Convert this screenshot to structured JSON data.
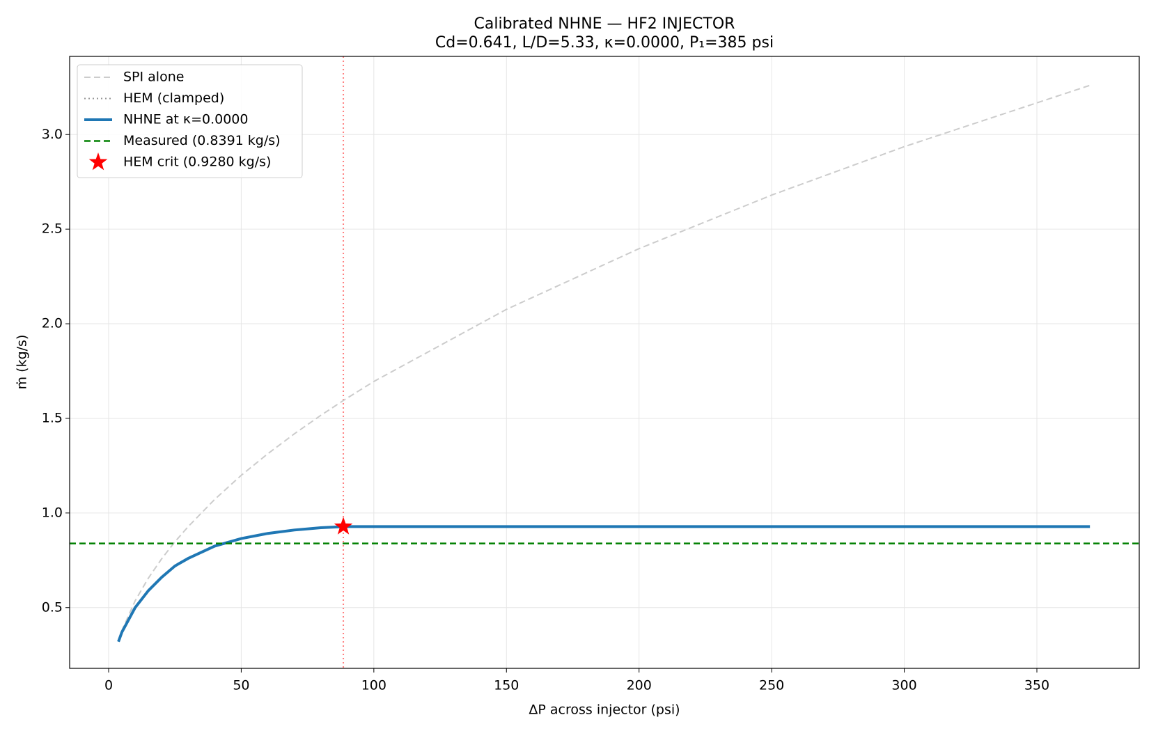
{
  "chart_data": {
    "type": "line",
    "title": "Calibrated NHNE — HF2 INJECTOR",
    "subtitle": "Cd=0.641, L/D=5.33, κ=0.0000, P₁=385 psi",
    "xlabel": "ΔP across injector (psi)",
    "ylabel": "ṁ (kg/s)",
    "x": [
      3.7,
      5,
      10,
      15,
      20,
      25,
      30,
      40,
      50,
      60,
      70,
      80,
      89,
      100,
      150,
      200,
      250,
      300,
      370
    ],
    "series": [
      {
        "name": "SPI alone",
        "color": "#cccccc",
        "style": "dashed",
        "width": 2,
        "values": [
          0.326,
          0.379,
          0.536,
          0.656,
          0.758,
          0.848,
          0.928,
          1.072,
          1.199,
          1.313,
          1.418,
          1.516,
          1.599,
          1.695,
          2.076,
          2.397,
          2.68,
          2.936,
          3.26
        ]
      },
      {
        "name": "HEM (clamped)",
        "color": "#999999",
        "style": "dotted",
        "width": 2,
        "values": [
          0.32,
          0.37,
          0.5,
          0.59,
          0.66,
          0.72,
          0.76,
          0.825,
          0.865,
          0.892,
          0.91,
          0.922,
          0.928,
          0.928,
          0.928,
          0.928,
          0.928,
          0.928,
          0.928
        ]
      },
      {
        "name": "NHNE at κ=0.0000",
        "color": "#1f77b4",
        "style": "solid",
        "width": 4,
        "values": [
          0.32,
          0.37,
          0.5,
          0.59,
          0.66,
          0.72,
          0.76,
          0.825,
          0.865,
          0.892,
          0.91,
          0.922,
          0.928,
          0.928,
          0.928,
          0.928,
          0.928,
          0.928,
          0.928
        ]
      }
    ],
    "hlines": [
      {
        "name": "Measured (0.8391 kg/s)",
        "color": "#008000",
        "value": 0.8391
      }
    ],
    "points": [
      {
        "name": "HEM crit (0.9280 kg/s)",
        "color": "#ff0000",
        "x": 88.5,
        "y": 0.928
      }
    ],
    "vline": {
      "value": 88.5,
      "color": "#ff8080"
    },
    "xlim": [
      -14.7,
      388.6
    ],
    "ylim": [
      0.179,
      3.413
    ],
    "xticks": [
      0,
      50,
      100,
      150,
      200,
      250,
      300,
      350
    ],
    "yticks": [
      0.5,
      {
        "value": 1,
        "label": "1.0"
      },
      1.5,
      {
        "value": 2,
        "label": "2.0"
      },
      2.5,
      {
        "value": 3,
        "label": "3.0"
      }
    ],
    "grid": true,
    "legend": "upper left"
  }
}
